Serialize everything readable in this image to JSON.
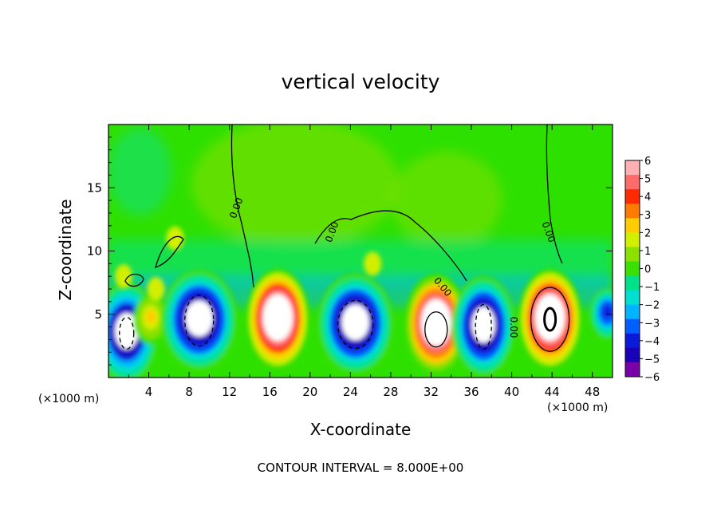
{
  "chart_data": {
    "type": "heatmap",
    "title": "vertical velocity",
    "xlabel": "X-coordinate",
    "ylabel": "Z-coordinate",
    "x_unit": "(×1000 m)",
    "y_unit": "",
    "xlim": [
      0,
      50
    ],
    "ylim": [
      0,
      20
    ],
    "x_ticks": [
      "4",
      "8",
      "12",
      "16",
      "20",
      "24",
      "28",
      "32",
      "36",
      "40",
      "44",
      "48"
    ],
    "y_ticks": [
      "5",
      "10",
      "15"
    ],
    "colorbar": {
      "ticks": [
        "6",
        "5",
        "4",
        "3",
        "2",
        "1",
        "0",
        "−1",
        "−2",
        "−3",
        "−4",
        "−5",
        "−6"
      ],
      "range": [
        -6,
        6
      ],
      "colors": [
        "#7a00a8",
        "#1a00b8",
        "#0b1ad8",
        "#0060ff",
        "#00b4ff",
        "#00e0d0",
        "#00e28a",
        "#3ae000",
        "#8be000",
        "#d2ef00",
        "#ffcc00",
        "#ff7a00",
        "#ff2a00",
        "#ff6a6a",
        "#ffb0b0"
      ]
    },
    "contour_labels": [
      "0.00",
      "0.00",
      "0.00",
      "0.00",
      "0.00"
    ],
    "contour_interval": "CONTOUR INTERVAL = 8.000E+00",
    "grid": false,
    "cells": [
      {
        "x": 1.8,
        "z": 3.5,
        "w": -7.0
      },
      {
        "x": 4.2,
        "z": 4.6,
        "w": 2.2
      },
      {
        "x": 9.0,
        "z": 4.5,
        "w": -7.5
      },
      {
        "x": 16.8,
        "z": 4.6,
        "w": 9.0
      },
      {
        "x": 24.5,
        "z": 4.2,
        "w": -7.5
      },
      {
        "x": 32.5,
        "z": 4.2,
        "w": 8.5
      },
      {
        "x": 37.2,
        "z": 4.0,
        "w": -7.5
      },
      {
        "x": 43.8,
        "z": 4.6,
        "w": 9.0
      },
      {
        "x": 49.5,
        "z": 5.0,
        "w": -4.5
      }
    ]
  }
}
